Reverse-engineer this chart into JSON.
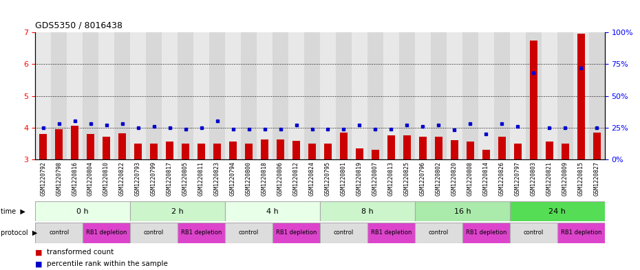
{
  "title": "GDS5350 / 8016438",
  "samples": [
    "GSM1220792",
    "GSM1220798",
    "GSM1220816",
    "GSM1220804",
    "GSM1220810",
    "GSM1220822",
    "GSM1220793",
    "GSM1220799",
    "GSM1220817",
    "GSM1220805",
    "GSM1220811",
    "GSM1220823",
    "GSM1220794",
    "GSM1220800",
    "GSM1220818",
    "GSM1220806",
    "GSM1220812",
    "GSM1220824",
    "GSM1220795",
    "GSM1220801",
    "GSM1220819",
    "GSM1220807",
    "GSM1220813",
    "GSM1220825",
    "GSM1220796",
    "GSM1220802",
    "GSM1220820",
    "GSM1220808",
    "GSM1220814",
    "GSM1220826",
    "GSM1220797",
    "GSM1220803",
    "GSM1220821",
    "GSM1220809",
    "GSM1220815",
    "GSM1220827"
  ],
  "red_values": [
    3.8,
    3.95,
    4.05,
    3.8,
    3.72,
    3.82,
    3.5,
    3.5,
    3.55,
    3.5,
    3.5,
    3.5,
    3.55,
    3.5,
    3.62,
    3.62,
    3.58,
    3.5,
    3.5,
    3.85,
    3.35,
    3.3,
    3.75,
    3.75,
    3.72,
    3.72,
    3.6,
    3.55,
    3.3,
    3.72,
    3.5,
    6.75,
    3.55,
    3.5,
    6.95,
    3.85
  ],
  "blue_values": [
    25,
    28,
    30,
    28,
    27,
    28,
    25,
    26,
    25,
    24,
    25,
    30,
    24,
    24,
    24,
    24,
    27,
    24,
    24,
    24,
    27,
    24,
    24,
    27,
    26,
    27,
    23,
    28,
    20,
    28,
    26,
    68,
    25,
    25,
    72,
    25
  ],
  "time_groups": [
    {
      "label": "0 h",
      "start": 0,
      "end": 6,
      "color": "#e8ffe8"
    },
    {
      "label": "2 h",
      "start": 6,
      "end": 12,
      "color": "#ccf5cc"
    },
    {
      "label": "4 h",
      "start": 12,
      "end": 18,
      "color": "#e8ffe8"
    },
    {
      "label": "8 h",
      "start": 18,
      "end": 24,
      "color": "#ccf5cc"
    },
    {
      "label": "16 h",
      "start": 24,
      "end": 30,
      "color": "#aaeaaa"
    },
    {
      "label": "24 h",
      "start": 30,
      "end": 36,
      "color": "#55dd55"
    }
  ],
  "protocol_groups": [
    {
      "label": "control",
      "start": 0,
      "end": 3
    },
    {
      "label": "RB1 depletion",
      "start": 3,
      "end": 6
    },
    {
      "label": "control",
      "start": 6,
      "end": 9
    },
    {
      "label": "RB1 depletion",
      "start": 9,
      "end": 12
    },
    {
      "label": "control",
      "start": 12,
      "end": 15
    },
    {
      "label": "RB1 depletion",
      "start": 15,
      "end": 18
    },
    {
      "label": "control",
      "start": 18,
      "end": 21
    },
    {
      "label": "RB1 depletion",
      "start": 21,
      "end": 24
    },
    {
      "label": "control",
      "start": 24,
      "end": 27
    },
    {
      "label": "RB1 depletion",
      "start": 27,
      "end": 30
    },
    {
      "label": "control",
      "start": 30,
      "end": 33
    },
    {
      "label": "RB1 depletion",
      "start": 33,
      "end": 36
    }
  ],
  "control_color": "#dddddd",
  "depletion_color": "#dd44cc",
  "ylim_left": [
    3.0,
    7.0
  ],
  "ylim_right": [
    0,
    100
  ],
  "yticks_left": [
    3,
    4,
    5,
    6,
    7
  ],
  "yticks_right": [
    0,
    25,
    50,
    75,
    100
  ],
  "ytick_labels_right": [
    "0%",
    "25%",
    "50%",
    "75%",
    "100%"
  ],
  "red_color": "#cc0000",
  "blue_color": "#0000cc",
  "bg_color_even": "#e8e8e8",
  "bg_color_odd": "#d8d8d8"
}
